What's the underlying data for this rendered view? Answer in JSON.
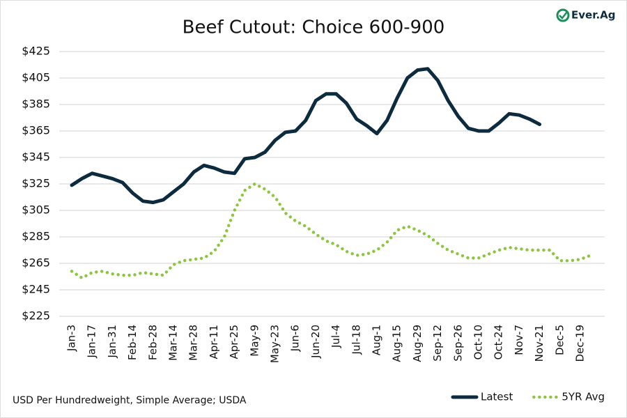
{
  "chart_data": {
    "type": "line",
    "title": "Beef Cutout: Choice 600-900",
    "logo": "Ever.Ag",
    "footnote": "USD Per Hundredweight, Simple Average; USDA",
    "categories": [
      "Jan-3",
      null,
      "Jan-17",
      null,
      "Jan-31",
      null,
      "Feb-14",
      null,
      "Feb-28",
      null,
      "Mar-14",
      null,
      "Mar-28",
      null,
      "Apr-11",
      null,
      "Apr-25",
      null,
      "May-9",
      null,
      "May-23",
      null,
      "Jun-6",
      null,
      "Jun-20",
      null,
      "Jul-4",
      null,
      "Jul-18",
      null,
      "Aug-1",
      null,
      "Aug-15",
      null,
      "Aug-29",
      null,
      "Sep-12",
      null,
      "Sep-26",
      null,
      "Oct-10",
      null,
      "Oct-24",
      null,
      "Nov-7",
      null,
      "Nov-21",
      null,
      "Dec-5",
      null,
      "Dec-19",
      null
    ],
    "series": [
      {
        "name": "Latest",
        "color": "#0d2b3e",
        "style": "solid",
        "values": [
          324,
          329,
          333,
          331,
          329,
          326,
          318,
          312,
          311,
          313,
          319,
          325,
          334,
          339,
          337,
          334,
          333,
          344,
          345,
          349,
          358,
          364,
          365,
          373,
          388,
          393,
          393,
          386,
          374,
          369,
          363,
          373,
          390,
          405,
          411,
          412,
          403,
          388,
          376,
          367,
          365,
          365,
          371,
          378,
          377,
          374,
          370,
          null,
          null,
          null,
          null,
          null
        ]
      },
      {
        "name": "5YR Avg",
        "color": "#8cc63f",
        "style": "dotted",
        "values": [
          259,
          254,
          258,
          259,
          257,
          256,
          256,
          258,
          257,
          256,
          264,
          267,
          268,
          269,
          274,
          285,
          305,
          320,
          325,
          321,
          315,
          303,
          297,
          293,
          287,
          282,
          279,
          274,
          271,
          272,
          275,
          281,
          290,
          293,
          290,
          286,
          280,
          275,
          272,
          269,
          269,
          272,
          275,
          277,
          276,
          275,
          275,
          275,
          267,
          267,
          268,
          271
        ]
      }
    ],
    "ylim": [
      225,
      425
    ],
    "yticks": [
      {
        "value": 225,
        "label": "$225"
      },
      {
        "value": 245,
        "label": "$245"
      },
      {
        "value": 265,
        "label": "$265"
      },
      {
        "value": 285,
        "label": "$285"
      },
      {
        "value": 305,
        "label": "$305"
      },
      {
        "value": 325,
        "label": "$325"
      },
      {
        "value": 345,
        "label": "$345"
      },
      {
        "value": 365,
        "label": "$365"
      },
      {
        "value": 385,
        "label": "$385"
      },
      {
        "value": 405,
        "label": "$405"
      },
      {
        "value": 425,
        "label": "$425"
      }
    ],
    "grid": true,
    "legend": "bottom-right"
  }
}
